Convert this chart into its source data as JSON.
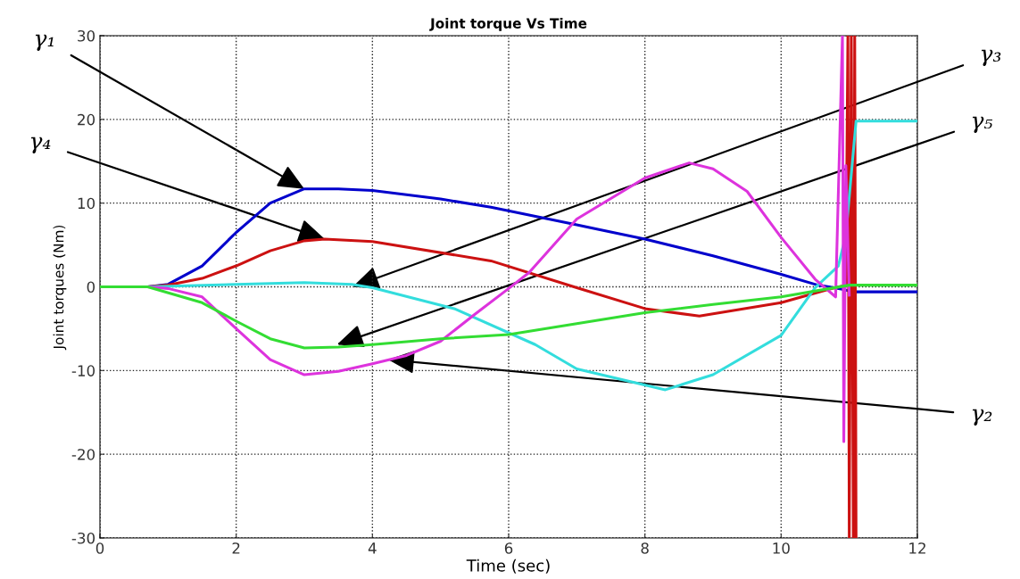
{
  "chart_data": {
    "type": "line",
    "title": "Joint torque Vs Time",
    "xlabel": "Time (sec)",
    "ylabel": "Joint torques (Nm)",
    "xlim": [
      0,
      12
    ],
    "xticks": [
      0,
      2,
      4,
      6,
      8,
      10,
      12
    ],
    "ylim": [
      -30,
      30
    ],
    "yticks": [
      -30,
      -20,
      -10,
      0,
      10,
      20,
      30
    ],
    "grid": true,
    "line_style": "solid",
    "marker": "none",
    "series": [
      {
        "color": "#0000cc",
        "x": [
          0,
          0.7,
          1,
          1.5,
          2,
          2.5,
          3,
          3.5,
          4,
          5,
          5.74,
          7,
          8,
          9,
          10,
          10.54,
          10.7,
          10.9,
          11.05,
          12
        ],
        "values": [
          0,
          0,
          0.3,
          2.5,
          6.5,
          10,
          11.7,
          11.7,
          11.5,
          10.5,
          9.5,
          7.4,
          5.7,
          3.7,
          1.5,
          0.2,
          0,
          -0.3,
          -0.6,
          -0.6
        ]
      },
      {
        "color": "#cc1111",
        "x": [
          0,
          0.7,
          1,
          1.5,
          2,
          2.5,
          3,
          3.3,
          4,
          5.74,
          7,
          8,
          8.8,
          10,
          10.7,
          10.95,
          10.98,
          11.0,
          11.03,
          11.06,
          11.08,
          11.1
        ],
        "values": [
          0,
          0,
          0.2,
          1,
          2.5,
          4.3,
          5.5,
          5.7,
          5.4,
          3.1,
          -0.1,
          -2.6,
          -3.5,
          -1.9,
          -0.3,
          0.2,
          30,
          -30,
          30,
          -30,
          30,
          -30
        ]
      },
      {
        "color": "#33dddd",
        "x": [
          0,
          0.7,
          2,
          3,
          3.7,
          4,
          5.2,
          6.39,
          7,
          8.3,
          9,
          10,
          10.5,
          10.84,
          10.95,
          11.1,
          12
        ],
        "values": [
          0,
          0,
          0.3,
          0.5,
          0.3,
          -0.1,
          -2.6,
          -6.9,
          -9.8,
          -12.3,
          -10.5,
          -5.8,
          -0.1,
          2.5,
          6.2,
          19.8,
          19.8
        ]
      },
      {
        "color": "#dd33dd",
        "x": [
          0,
          0.7,
          1,
          1.5,
          2,
          2.5,
          3,
          3.5,
          4,
          4.5,
          5,
          5.5,
          6,
          6.3,
          7,
          8,
          8.65,
          9,
          9.5,
          10,
          10.5,
          10.8,
          10.9,
          10.92,
          10.95,
          11.0
        ],
        "values": [
          0,
          0,
          -0.2,
          -1.2,
          -5,
          -8.7,
          -10.5,
          -10.1,
          -9.2,
          -8.2,
          -6.5,
          -3.3,
          -0.2,
          1.7,
          8.1,
          13,
          14.8,
          14.1,
          11.4,
          5.9,
          0.9,
          -1.2,
          30,
          -18.5,
          14.5,
          -1
        ]
      },
      {
        "color": "#33dd33",
        "x": [
          0,
          0.7,
          1.5,
          2,
          2.5,
          3,
          3.5,
          4,
          5,
          6,
          7,
          8,
          9,
          10,
          11,
          12
        ],
        "values": [
          0,
          0,
          -1.9,
          -4.1,
          -6.2,
          -7.3,
          -7.2,
          -6.9,
          -6.2,
          -5.7,
          -4.4,
          -3.1,
          -2.1,
          -1.2,
          0.2,
          0.2
        ]
      }
    ],
    "annotations": [
      {
        "text": "γ₁",
        "x": 3,
        "y": 11.7
      },
      {
        "text": "γ₄",
        "x": 3.3,
        "y": 5.7
      },
      {
        "text": "γ₃",
        "x": 3.71,
        "y": 0
      },
      {
        "text": "γ₅",
        "x": 3.48,
        "y": -6.9
      },
      {
        "text": "γ₂",
        "x": 4.23,
        "y": -8.7
      }
    ]
  }
}
